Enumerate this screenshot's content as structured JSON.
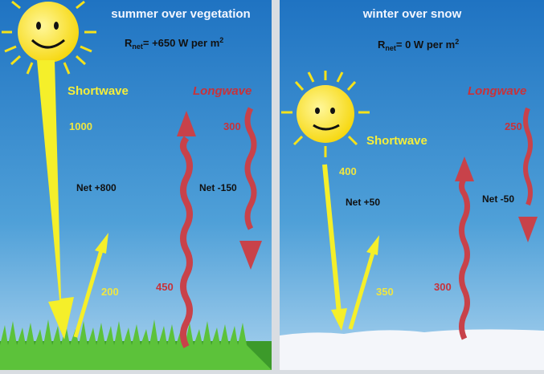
{
  "panels": [
    {
      "title": "summer over vegetation",
      "rnet": {
        "symbol": "R",
        "subscript": "net",
        "text": "= +650 W per m",
        "superscript": "2"
      },
      "shortwave": {
        "label": "Shortwave",
        "incoming": 1000,
        "reflected": 200,
        "net": "Net +800"
      },
      "longwave": {
        "label": "Longwave",
        "incoming": 300,
        "outgoing": 450,
        "net": "Net -150"
      }
    },
    {
      "title": "winter over snow",
      "rnet": {
        "symbol": "R",
        "subscript": "net",
        "text": "= 0 W per m",
        "superscript": "2"
      },
      "shortwave": {
        "label": "Shortwave",
        "incoming": 400,
        "reflected": 350,
        "net": "Net +50"
      },
      "longwave": {
        "label": "Longwave",
        "incoming": 250,
        "outgoing": 300,
        "net": "Net -50"
      }
    }
  ]
}
